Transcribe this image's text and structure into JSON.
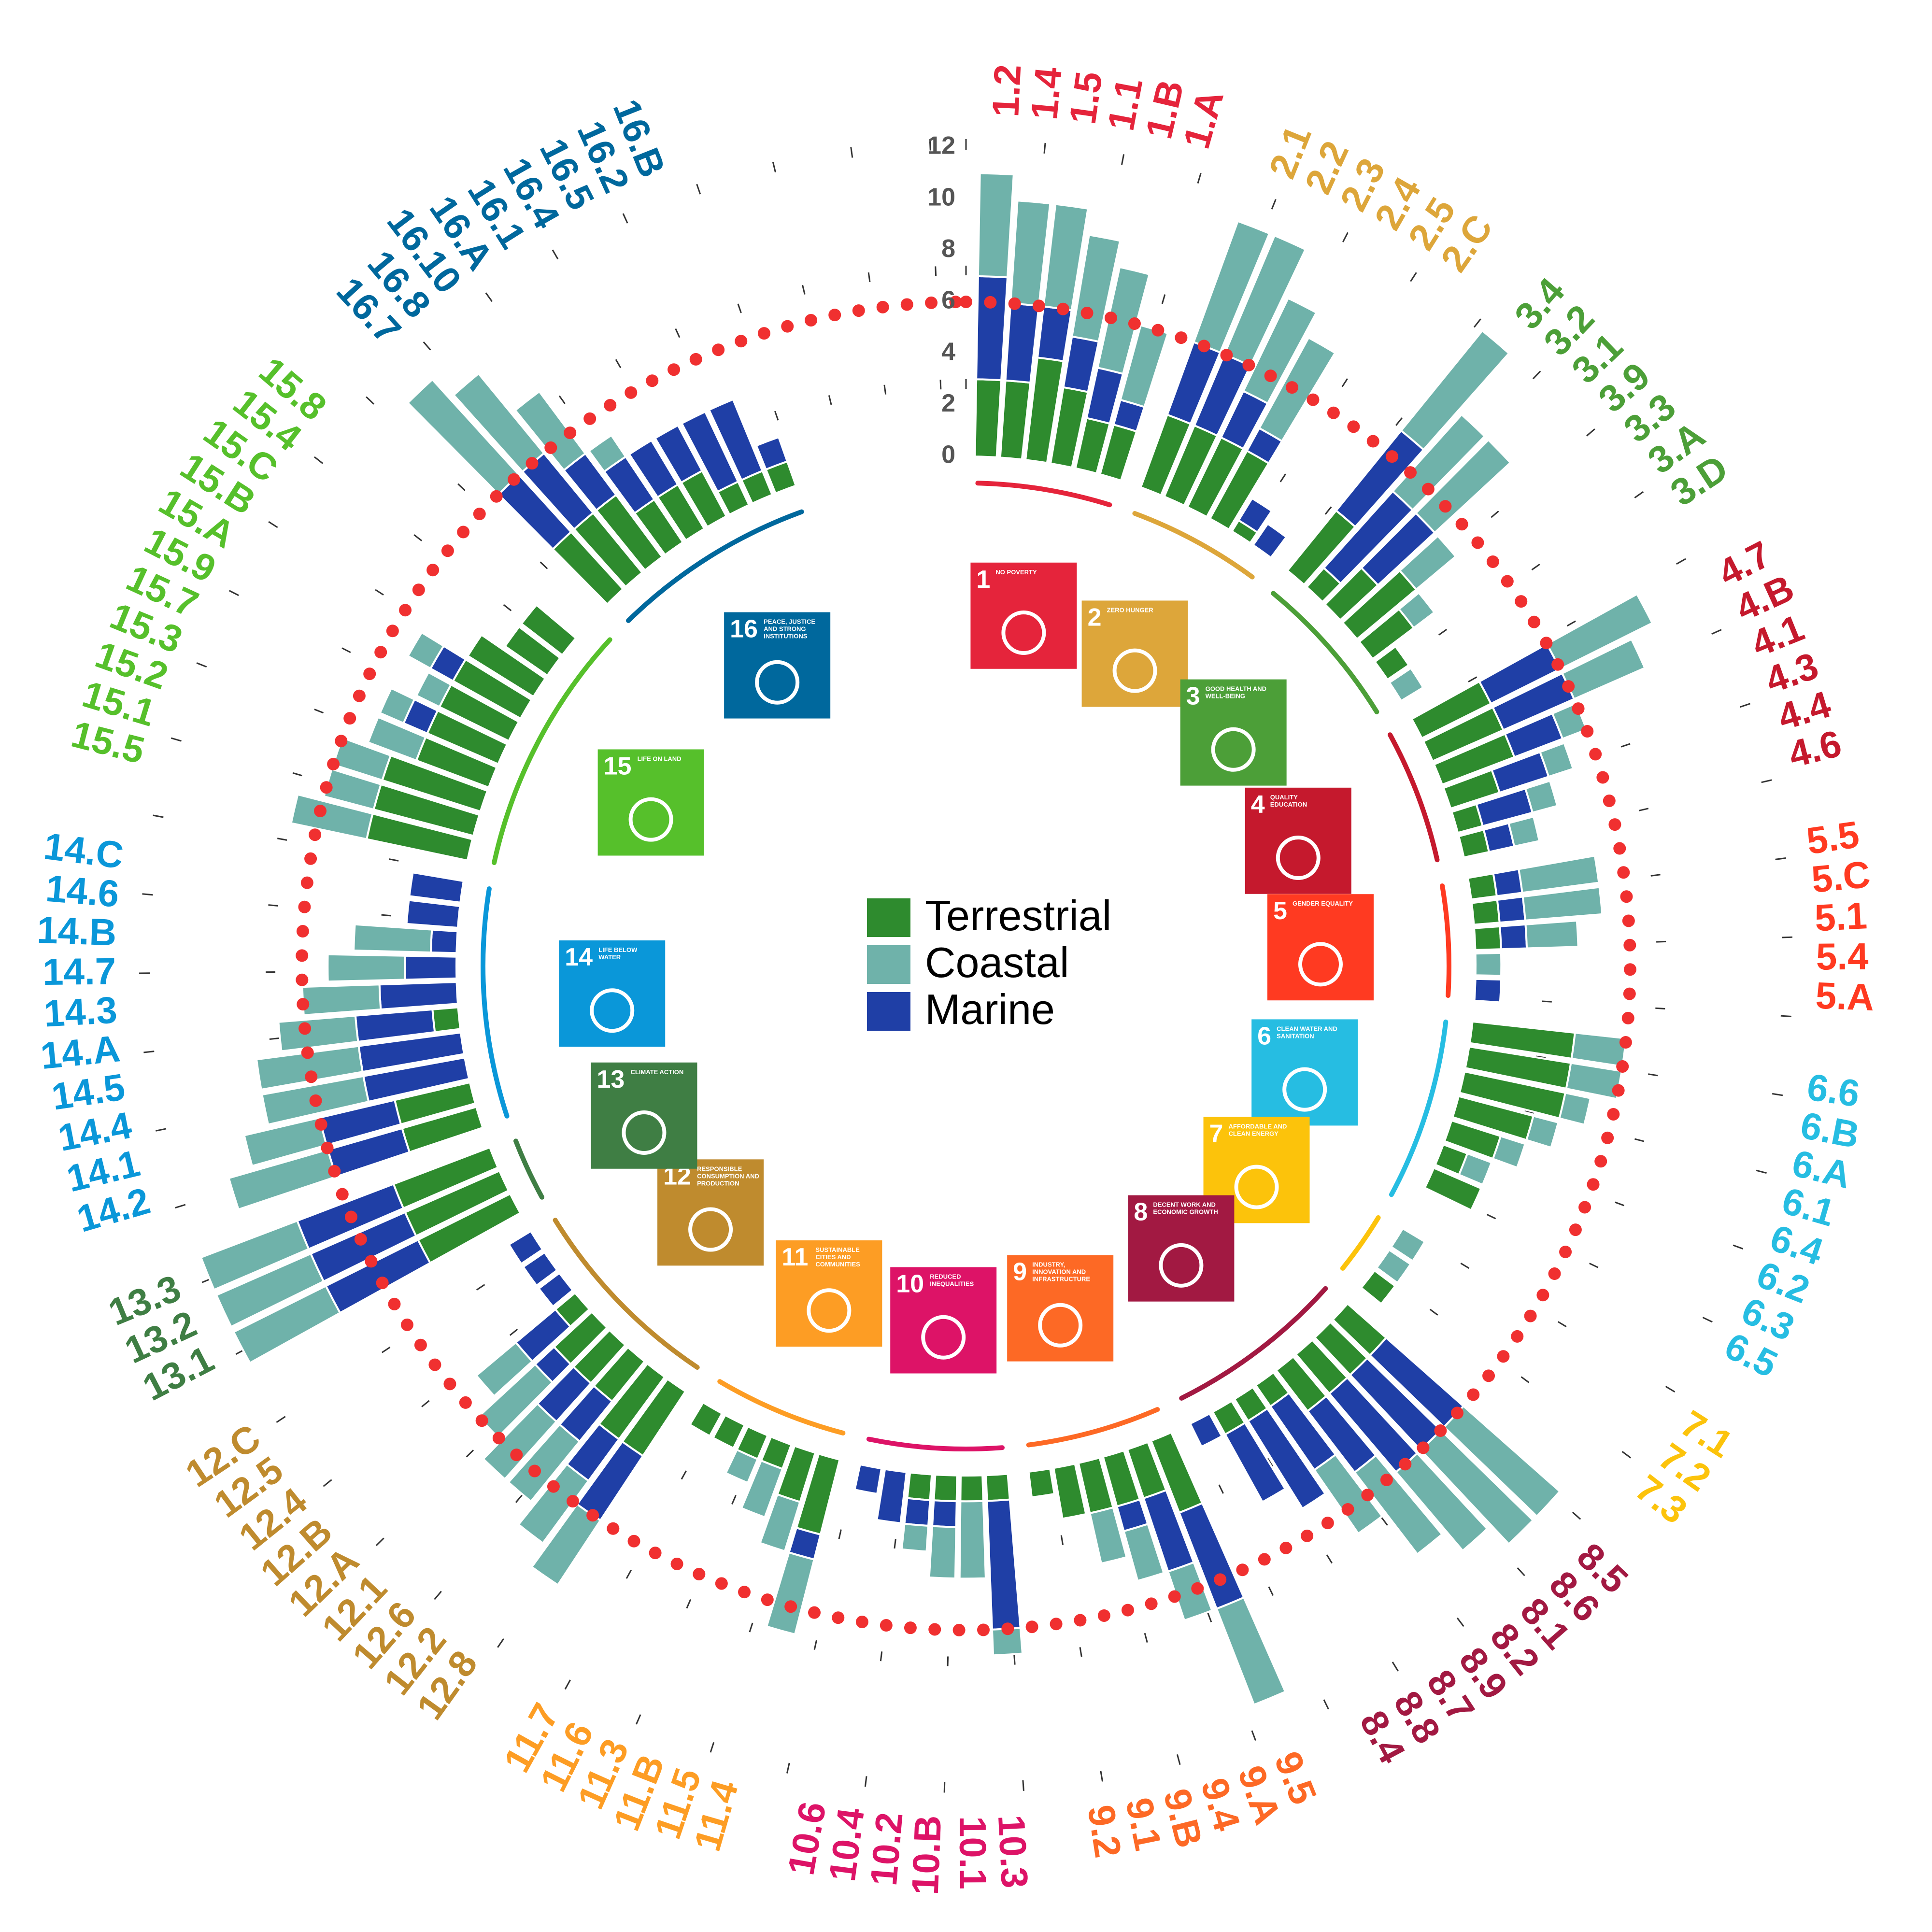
{
  "chart_data": {
    "type": "bar",
    "layout": "radial stacked bar",
    "value_axis": {
      "ticks": [
        "0",
        "2",
        "4",
        "6",
        "8",
        "10",
        "12"
      ],
      "ylim": [
        0,
        12
      ]
    },
    "series": [
      {
        "name": "Terrestrial",
        "color": "#2e8b2e"
      },
      {
        "name": "Coastal",
        "color": "#6fb2aa"
      },
      {
        "name": "Marine",
        "color": "#1f3fa6"
      }
    ],
    "marker": {
      "color": "#f03030",
      "value": 6
    },
    "goals": [
      {
        "number": "1",
        "title": "NO POVERTY",
        "color": "#e5243b",
        "icon": "family-icon",
        "targets": [
          {
            "label": "1.2",
            "terrestrial": 3,
            "marine": 4,
            "coastal": 4
          },
          {
            "label": "1.4",
            "terrestrial": 3,
            "marine": 3,
            "coastal": 4
          },
          {
            "label": "1.5",
            "terrestrial": 4,
            "marine": 2,
            "coastal": 4
          },
          {
            "label": "1.1",
            "terrestrial": 3,
            "marine": 2,
            "coastal": 4
          },
          {
            "label": "1.B",
            "terrestrial": 2,
            "marine": 2,
            "coastal": 4
          },
          {
            "label": "1.A",
            "terrestrial": 2,
            "marine": 1,
            "coastal": 3
          }
        ]
      },
      {
        "number": "2",
        "title": "ZERO HUNGER",
        "color": "#dda63a",
        "icon": "bowl-icon",
        "targets": [
          {
            "label": "2.1",
            "terrestrial": 3,
            "marine": 3,
            "coastal": 5
          },
          {
            "label": "2.2",
            "terrestrial": 3,
            "marine": 3,
            "coastal": 5
          },
          {
            "label": "2.3",
            "terrestrial": 3,
            "marine": 2,
            "coastal": 4
          },
          {
            "label": "2.4",
            "terrestrial": 3,
            "marine": 1,
            "coastal": 4
          },
          {
            "label": "2.5",
            "terrestrial": 0.5,
            "marine": 1,
            "coastal": 0
          },
          {
            "label": "2.C",
            "terrestrial": 0,
            "marine": 1,
            "coastal": 0
          }
        ]
      },
      {
        "number": "3",
        "title": "GOOD HEALTH AND WELL-BEING",
        "color": "#4c9f38",
        "icon": "heartbeat-icon",
        "targets": [
          {
            "label": "3.4",
            "terrestrial": 3,
            "marine": 4,
            "coastal": 5
          },
          {
            "label": "3.2",
            "terrestrial": 1,
            "marine": 4,
            "coastal": 4
          },
          {
            "label": "3.1",
            "terrestrial": 2,
            "marine": 3,
            "coastal": 4
          },
          {
            "label": "3.9",
            "terrestrial": 3,
            "marine": 0,
            "coastal": 2
          },
          {
            "label": "3.3",
            "terrestrial": 2,
            "marine": 0,
            "coastal": 1
          },
          {
            "label": "3.A",
            "terrestrial": 1,
            "marine": 0,
            "coastal": 0
          },
          {
            "label": "3.D",
            "terrestrial": 0,
            "marine": 0,
            "coastal": 1
          }
        ]
      },
      {
        "number": "4",
        "title": "QUALITY EDUCATION",
        "color": "#c5192d",
        "icon": "book-icon",
        "targets": [
          {
            "label": "4.7",
            "terrestrial": 3,
            "marine": 3,
            "coastal": 4
          },
          {
            "label": "4.B",
            "terrestrial": 3,
            "marine": 3,
            "coastal": 3
          },
          {
            "label": "4.1",
            "terrestrial": 3,
            "marine": 2,
            "coastal": 1
          },
          {
            "label": "4.3",
            "terrestrial": 2,
            "marine": 2,
            "coastal": 1
          },
          {
            "label": "4.4",
            "terrestrial": 1,
            "marine": 2,
            "coastal": 1
          },
          {
            "label": "4.6",
            "terrestrial": 1,
            "marine": 1,
            "coastal": 1
          }
        ]
      },
      {
        "number": "5",
        "title": "GENDER EQUALITY",
        "color": "#ff3a21",
        "icon": "gender-icon",
        "targets": [
          {
            "label": "5.5",
            "terrestrial": 1,
            "marine": 1,
            "coastal": 3
          },
          {
            "label": "5.C",
            "terrestrial": 1,
            "marine": 1,
            "coastal": 3
          },
          {
            "label": "5.1",
            "terrestrial": 1,
            "marine": 1,
            "coastal": 2
          },
          {
            "label": "5.4",
            "terrestrial": 0,
            "marine": 0,
            "coastal": 1
          },
          {
            "label": "5.A",
            "terrestrial": 0,
            "marine": 1,
            "coastal": 0
          }
        ]
      },
      {
        "number": "6",
        "title": "CLEAN WATER AND SANITATION",
        "color": "#26bde2",
        "icon": "water-icon",
        "targets": [
          {
            "label": "6.6",
            "terrestrial": 4,
            "marine": 0,
            "coastal": 2
          },
          {
            "label": "6.B",
            "terrestrial": 4,
            "marine": 0,
            "coastal": 2
          },
          {
            "label": "6.A",
            "terrestrial": 4,
            "marine": 0,
            "coastal": 1
          },
          {
            "label": "6.1",
            "terrestrial": 3,
            "marine": 0,
            "coastal": 1
          },
          {
            "label": "6.4",
            "terrestrial": 2,
            "marine": 0,
            "coastal": 1
          },
          {
            "label": "6.2",
            "terrestrial": 1,
            "marine": 0,
            "coastal": 1
          },
          {
            "label": "6.3",
            "terrestrial": 2,
            "marine": 0,
            "coastal": 0
          },
          {
            "label": "6.5",
            "terrestrial": 0,
            "marine": 0,
            "coastal": 0
          }
        ]
      },
      {
        "number": "7",
        "title": "AFFORDABLE AND CLEAN ENERGY",
        "color": "#fcc30b",
        "icon": "power-icon",
        "targets": [
          {
            "label": "7.1",
            "terrestrial": 0,
            "marine": 0,
            "coastal": 1
          },
          {
            "label": "7.2",
            "terrestrial": 0,
            "marine": 0,
            "coastal": 1
          },
          {
            "label": "7.3",
            "terrestrial": 1,
            "marine": 0,
            "coastal": 0
          }
        ]
      },
      {
        "number": "8",
        "title": "DECENT WORK AND ECONOMIC GROWTH",
        "color": "#a21942",
        "icon": "growth-icon",
        "targets": [
          {
            "label": "8.5",
            "terrestrial": 2,
            "marine": 4,
            "coastal": 5
          },
          {
            "label": "8.6",
            "terrestrial": 2,
            "marine": 4,
            "coastal": 5
          },
          {
            "label": "8.1",
            "terrestrial": 2,
            "marine": 4,
            "coastal": 4
          },
          {
            "label": "8.2",
            "terrestrial": 2,
            "marine": 3,
            "coastal": 4
          },
          {
            "label": "8.9",
            "terrestrial": 1,
            "marine": 3,
            "coastal": 3
          },
          {
            "label": "8.7",
            "terrestrial": 1,
            "marine": 4,
            "coastal": 0
          },
          {
            "label": "8.8",
            "terrestrial": 1,
            "marine": 3,
            "coastal": 0
          },
          {
            "label": "8.4",
            "terrestrial": 0,
            "marine": 1,
            "coastal": 0
          }
        ]
      },
      {
        "number": "9",
        "title": "INDUSTRY, INNOVATION AND INFRASTRUCTURE",
        "color": "#fd6925",
        "icon": "cubes-icon",
        "targets": [
          {
            "label": "9.5",
            "terrestrial": 3,
            "marine": 4,
            "coastal": 4
          },
          {
            "label": "9.A",
            "terrestrial": 2,
            "marine": 3,
            "coastal": 2
          },
          {
            "label": "9.4",
            "terrestrial": 2,
            "marine": 1,
            "coastal": 2
          },
          {
            "label": "9.B",
            "terrestrial": 2,
            "marine": 0,
            "coastal": 2
          },
          {
            "label": "9.1",
            "terrestrial": 2,
            "marine": 0,
            "coastal": 0
          },
          {
            "label": "9.2",
            "terrestrial": 1,
            "marine": 0,
            "coastal": 0
          }
        ]
      },
      {
        "number": "10",
        "title": "REDUCED INEQUALITIES",
        "color": "#dd1367",
        "icon": "equality-arrows-icon",
        "targets": [
          {
            "label": "10.3",
            "terrestrial": 1,
            "marine": 5,
            "coastal": 1
          },
          {
            "label": "10.1",
            "terrestrial": 1,
            "marine": 0,
            "coastal": 3
          },
          {
            "label": "10.B",
            "terrestrial": 1,
            "marine": 1,
            "coastal": 2
          },
          {
            "label": "10.2",
            "terrestrial": 1,
            "marine": 1,
            "coastal": 1
          },
          {
            "label": "10.4",
            "terrestrial": 0,
            "marine": 2,
            "coastal": 0
          },
          {
            "label": "10.6",
            "terrestrial": 0,
            "marine": 1,
            "coastal": 0
          }
        ]
      },
      {
        "number": "11",
        "title": "SUSTAINABLE CITIES AND COMMUNITIES",
        "color": "#fd9d24",
        "icon": "city-icon",
        "targets": [
          {
            "label": "11.4",
            "terrestrial": 3,
            "marine": 1,
            "coastal": 3
          },
          {
            "label": "11.5",
            "terrestrial": 2,
            "marine": 0,
            "coastal": 2
          },
          {
            "label": "11.B",
            "terrestrial": 1,
            "marine": 0,
            "coastal": 2
          },
          {
            "label": "11.3",
            "terrestrial": 1,
            "marine": 0,
            "coastal": 1
          },
          {
            "label": "11.6",
            "terrestrial": 1,
            "marine": 0,
            "coastal": 0
          },
          {
            "label": "11.7",
            "terrestrial": 1,
            "marine": 0,
            "coastal": 0
          }
        ]
      },
      {
        "number": "12",
        "title": "RESPONSIBLE CONSUMPTION AND PRODUCTION",
        "color": "#bf8b2e",
        "icon": "infinity-icon",
        "targets": [
          {
            "label": "12.8",
            "terrestrial": 3,
            "marine": 3,
            "coastal": 3
          },
          {
            "label": "12.2",
            "terrestrial": 3,
            "marine": 2,
            "coastal": 3
          },
          {
            "label": "12.6",
            "terrestrial": 2,
            "marine": 2,
            "coastal": 3
          },
          {
            "label": "12.1",
            "terrestrial": 2,
            "marine": 2,
            "coastal": 3
          },
          {
            "label": "12.A",
            "terrestrial": 2,
            "marine": 1,
            "coastal": 3
          },
          {
            "label": "12.B",
            "terrestrial": 1,
            "marine": 2,
            "coastal": 2
          },
          {
            "label": "12.4",
            "terrestrial": 0,
            "marine": 1,
            "coastal": 0
          },
          {
            "label": "12.5",
            "terrestrial": 0,
            "marine": 1,
            "coastal": 0
          },
          {
            "label": "12.C",
            "terrestrial": 0,
            "marine": 1,
            "coastal": 0
          }
        ]
      },
      {
        "number": "13",
        "title": "CLIMATE ACTION",
        "color": "#3f7e44",
        "icon": "eye-globe-icon",
        "targets": [
          {
            "label": "13.1",
            "terrestrial": 4,
            "marine": 4,
            "coastal": 4
          },
          {
            "label": "13.2",
            "terrestrial": 4,
            "marine": 4,
            "coastal": 4
          },
          {
            "label": "13.3",
            "terrestrial": 4,
            "marine": 4,
            "coastal": 4
          }
        ]
      },
      {
        "number": "14",
        "title": "LIFE BELOW WATER",
        "color": "#0a97d9",
        "icon": "fish-icon",
        "targets": [
          {
            "label": "14.2",
            "terrestrial": 3,
            "marine": 3,
            "coastal": 4
          },
          {
            "label": "14.1",
            "terrestrial": 3,
            "marine": 3,
            "coastal": 3
          },
          {
            "label": "14.4",
            "terrestrial": 0,
            "marine": 4,
            "coastal": 4
          },
          {
            "label": "14.5",
            "terrestrial": 0,
            "marine": 4,
            "coastal": 4
          },
          {
            "label": "14.A",
            "terrestrial": 1,
            "marine": 3,
            "coastal": 3
          },
          {
            "label": "14.3",
            "terrestrial": 0,
            "marine": 3,
            "coastal": 3
          },
          {
            "label": "14.7",
            "terrestrial": 0,
            "marine": 2,
            "coastal": 3
          },
          {
            "label": "14.B",
            "terrestrial": 0,
            "marine": 1,
            "coastal": 3
          },
          {
            "label": "14.6",
            "terrestrial": 0,
            "marine": 2,
            "coastal": 0
          },
          {
            "label": "14.C",
            "terrestrial": 0,
            "marine": 2,
            "coastal": 0
          }
        ]
      },
      {
        "number": "15",
        "title": "LIFE ON LAND",
        "color": "#56c02b",
        "icon": "tree-icon",
        "targets": [
          {
            "label": "15.5",
            "terrestrial": 4,
            "marine": 0,
            "coastal": 3
          },
          {
            "label": "15.1",
            "terrestrial": 4,
            "marine": 0,
            "coastal": 2
          },
          {
            "label": "15.2",
            "terrestrial": 4,
            "marine": 0,
            "coastal": 2
          },
          {
            "label": "15.3",
            "terrestrial": 3,
            "marine": 0,
            "coastal": 2
          },
          {
            "label": "15.7",
            "terrestrial": 3,
            "marine": 1,
            "coastal": 1
          },
          {
            "label": "15.9",
            "terrestrial": 3,
            "marine": 0,
            "coastal": 1
          },
          {
            "label": "15.A",
            "terrestrial": 3,
            "marine": 1,
            "coastal": 1
          },
          {
            "label": "15.B",
            "terrestrial": 3,
            "marine": 0,
            "coastal": 0
          },
          {
            "label": "15.C",
            "terrestrial": 2,
            "marine": 0,
            "coastal": 0
          },
          {
            "label": "15.4",
            "terrestrial": 2,
            "marine": 0,
            "coastal": 0
          },
          {
            "label": "15.8",
            "terrestrial": 0,
            "marine": 0,
            "coastal": 0
          }
        ]
      },
      {
        "number": "16",
        "title": "PEACE, JUSTICE AND STRONG INSTITUTIONS",
        "color": "#00689d",
        "icon": "dove-gavel-icon",
        "targets": [
          {
            "label": "16.7",
            "terrestrial": 3,
            "marine": 3,
            "coastal": 5
          },
          {
            "label": "16.8",
            "terrestrial": 3,
            "marine": 3,
            "coastal": 4
          },
          {
            "label": "16.10",
            "terrestrial": 3,
            "marine": 2,
            "coastal": 3
          },
          {
            "label": "16.A",
            "terrestrial": 2,
            "marine": 2,
            "coastal": 1
          },
          {
            "label": "16.1",
            "terrestrial": 2,
            "marine": 2,
            "coastal": 0
          },
          {
            "label": "16.4",
            "terrestrial": 2,
            "marine": 2,
            "coastal": 0
          },
          {
            "label": "16.5",
            "terrestrial": 1,
            "marine": 3,
            "coastal": 0
          },
          {
            "label": "16.2",
            "terrestrial": 1,
            "marine": 3,
            "coastal": 0
          },
          {
            "label": "16.B",
            "terrestrial": 1,
            "marine": 1,
            "coastal": 0
          }
        ]
      }
    ]
  }
}
